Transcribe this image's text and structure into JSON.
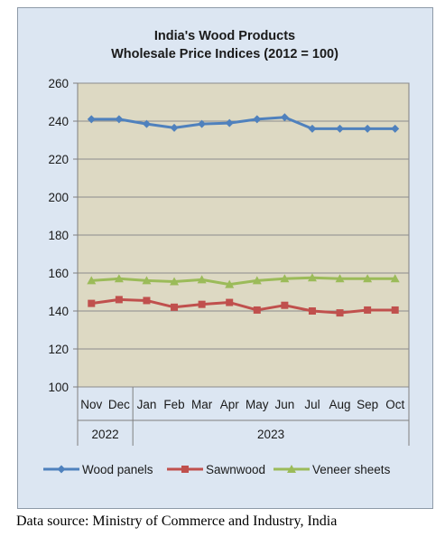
{
  "chart_data": {
    "type": "line",
    "title_line1": "India's Wood Products",
    "title_line2": "Wholesale Price Indices (2012 = 100)",
    "categories": [
      "Nov",
      "Dec",
      "Jan",
      "Feb",
      "Mar",
      "Apr",
      "May",
      "Jun",
      "Jul",
      "Aug",
      "Sep",
      "Oct"
    ],
    "year_groups": [
      {
        "label": "2022",
        "count": 2
      },
      {
        "label": "2023",
        "count": 10
      }
    ],
    "ylim": [
      100,
      260
    ],
    "yticks": [
      "100",
      "120",
      "140",
      "160",
      "180",
      "200",
      "220",
      "240",
      "260"
    ],
    "grid": true,
    "legend_position": "bottom",
    "plot_bg": "#ddd9c3",
    "series": [
      {
        "name": "Wood panels",
        "color": "#4f81bd",
        "marker": "diamond",
        "values": [
          241,
          241,
          238.5,
          236.5,
          238.5,
          239,
          241,
          242,
          236,
          236,
          236,
          236
        ]
      },
      {
        "name": "Sawnwood",
        "color": "#c0504d",
        "marker": "square",
        "values": [
          144,
          146,
          145.5,
          142,
          143.5,
          144.5,
          140.5,
          143,
          140,
          139,
          140.5,
          140.5
        ]
      },
      {
        "name": "Veneer sheets",
        "color": "#9bbb59",
        "marker": "triangle",
        "values": [
          156,
          157,
          156,
          155.5,
          156.5,
          154,
          156,
          157,
          157.5,
          157,
          157,
          157
        ]
      }
    ]
  },
  "source_note": "Data source: Ministry of Commerce and Industry, India"
}
